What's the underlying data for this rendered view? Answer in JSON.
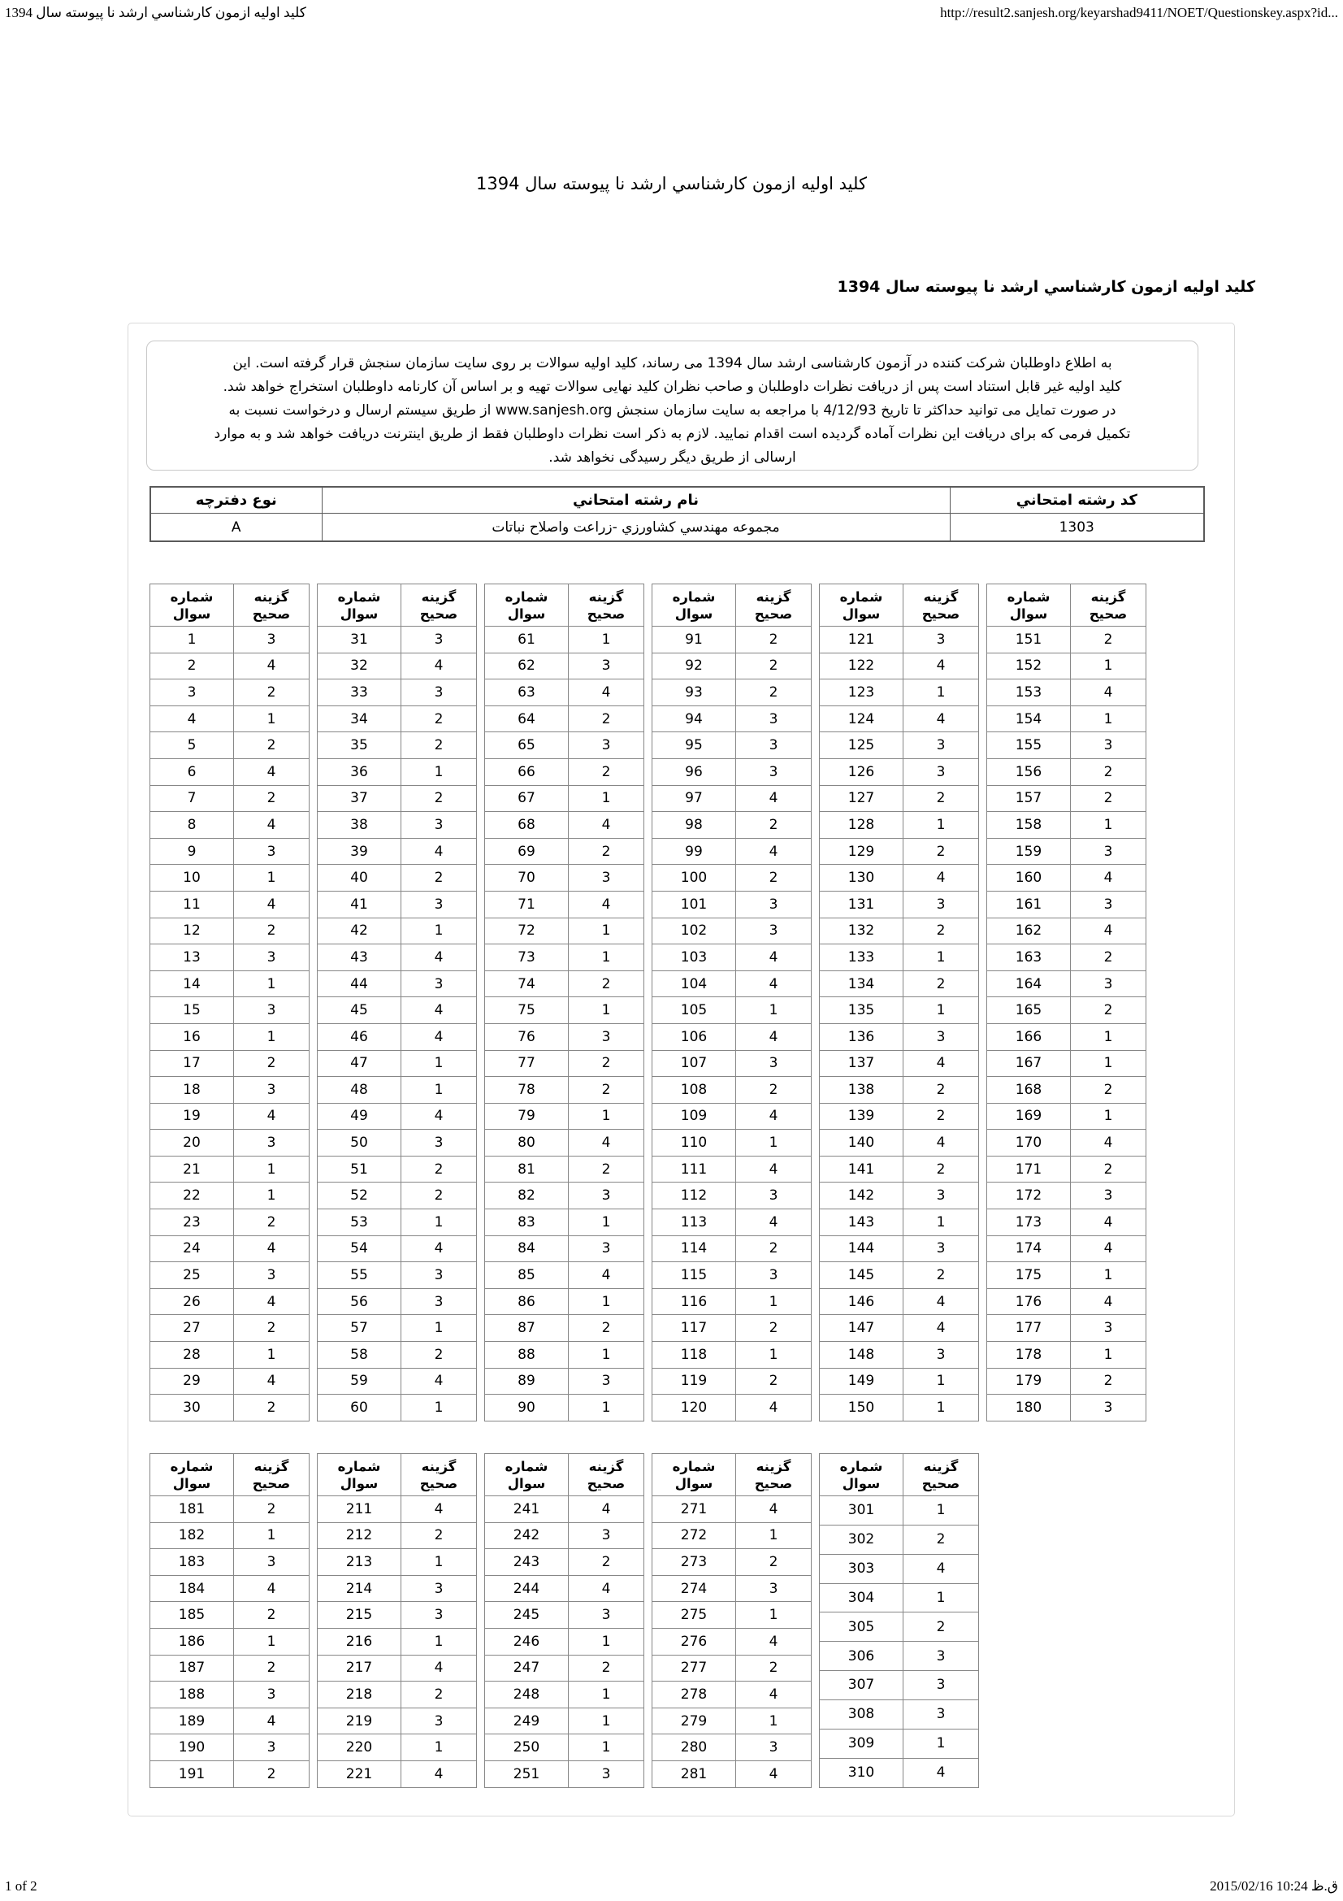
{
  "browser_header": {
    "title": "کلید اولیه ازمون کارشناسي ارشد نا پیوسته سال 1394",
    "url": "http://result2.sanjesh.org/keyarshad9411/NOET/Questionskey.aspx?id..."
  },
  "page": {
    "title": "کلید اولیه ازمون کارشناسي ارشد نا پیوسته سال 1394",
    "subtitle": "کلید اولیه ازمون کارشناسي ارشد نا پیوسته سال 1394"
  },
  "notice": {
    "lines": [
      "به اطلاع داوطلبان شرکت کننده در آزمون کارشناسی ارشد سال 1394 می رساند، کلید اولیه سوالات بر روی سایت سازمان سنجش قرار گرفته است. این",
      "کلید اولیه غیر قابل استناد است پس از دریافت نظرات داوطلبان و صاحب نظران کلید نهایی سوالات تهیه و بر اساس آن کارنامه داوطلبان استخراج خواهد شد.",
      "در صورت تمایل می توانید حداکثر تا تاریخ 4/12/93 با مراجعه به سایت سازمان سنجش www.sanjesh.org از طریق  سیستم ارسال و درخواست نسبت به",
      "تکمیل فرمی که برای دریافت این نظرات آماده گردیده است اقدام نمایید. لازم به ذکر است نظرات داوطلبان فقط از طریق اینترنت دریافت خواهد شد و به موارد",
      "ارسالی از طریق دیگر رسیدگی نخواهد شد."
    ]
  },
  "exam_info": {
    "headers": {
      "code": "کد رشته امتحاني",
      "name": "نام رشته امتحاني",
      "booklet": "نوع دفترچه"
    },
    "row": {
      "code": "1303",
      "name": "مجموعه مهندسي کشاورزي -زراعت واصلاح نباتات",
      "booklet": "A"
    }
  },
  "answer_key": {
    "question_header": "شماره سوال",
    "answer_header": "گزینه صحیح",
    "tables_top": [
      {
        "rows": [
          [
            1,
            3
          ],
          [
            2,
            4
          ],
          [
            3,
            2
          ],
          [
            4,
            1
          ],
          [
            5,
            2
          ],
          [
            6,
            4
          ],
          [
            7,
            2
          ],
          [
            8,
            4
          ],
          [
            9,
            3
          ],
          [
            10,
            1
          ],
          [
            11,
            4
          ],
          [
            12,
            2
          ],
          [
            13,
            3
          ],
          [
            14,
            1
          ],
          [
            15,
            3
          ],
          [
            16,
            1
          ],
          [
            17,
            2
          ],
          [
            18,
            3
          ],
          [
            19,
            4
          ],
          [
            20,
            3
          ],
          [
            21,
            1
          ],
          [
            22,
            1
          ],
          [
            23,
            2
          ],
          [
            24,
            4
          ],
          [
            25,
            3
          ],
          [
            26,
            4
          ],
          [
            27,
            2
          ],
          [
            28,
            1
          ],
          [
            29,
            4
          ],
          [
            30,
            2
          ]
        ]
      },
      {
        "rows": [
          [
            31,
            3
          ],
          [
            32,
            4
          ],
          [
            33,
            3
          ],
          [
            34,
            2
          ],
          [
            35,
            2
          ],
          [
            36,
            1
          ],
          [
            37,
            2
          ],
          [
            38,
            3
          ],
          [
            39,
            4
          ],
          [
            40,
            2
          ],
          [
            41,
            3
          ],
          [
            42,
            1
          ],
          [
            43,
            4
          ],
          [
            44,
            3
          ],
          [
            45,
            4
          ],
          [
            46,
            4
          ],
          [
            47,
            1
          ],
          [
            48,
            1
          ],
          [
            49,
            4
          ],
          [
            50,
            3
          ],
          [
            51,
            2
          ],
          [
            52,
            2
          ],
          [
            53,
            1
          ],
          [
            54,
            4
          ],
          [
            55,
            3
          ],
          [
            56,
            3
          ],
          [
            57,
            1
          ],
          [
            58,
            2
          ],
          [
            59,
            4
          ],
          [
            60,
            1
          ]
        ]
      },
      {
        "rows": [
          [
            61,
            1
          ],
          [
            62,
            3
          ],
          [
            63,
            4
          ],
          [
            64,
            2
          ],
          [
            65,
            3
          ],
          [
            66,
            2
          ],
          [
            67,
            1
          ],
          [
            68,
            4
          ],
          [
            69,
            2
          ],
          [
            70,
            3
          ],
          [
            71,
            4
          ],
          [
            72,
            1
          ],
          [
            73,
            1
          ],
          [
            74,
            2
          ],
          [
            75,
            1
          ],
          [
            76,
            3
          ],
          [
            77,
            2
          ],
          [
            78,
            2
          ],
          [
            79,
            1
          ],
          [
            80,
            4
          ],
          [
            81,
            2
          ],
          [
            82,
            3
          ],
          [
            83,
            1
          ],
          [
            84,
            3
          ],
          [
            85,
            4
          ],
          [
            86,
            1
          ],
          [
            87,
            2
          ],
          [
            88,
            1
          ],
          [
            89,
            3
          ],
          [
            90,
            1
          ]
        ]
      },
      {
        "rows": [
          [
            91,
            2
          ],
          [
            92,
            2
          ],
          [
            93,
            2
          ],
          [
            94,
            3
          ],
          [
            95,
            3
          ],
          [
            96,
            3
          ],
          [
            97,
            4
          ],
          [
            98,
            2
          ],
          [
            99,
            4
          ],
          [
            100,
            2
          ],
          [
            101,
            3
          ],
          [
            102,
            3
          ],
          [
            103,
            4
          ],
          [
            104,
            4
          ],
          [
            105,
            1
          ],
          [
            106,
            4
          ],
          [
            107,
            3
          ],
          [
            108,
            2
          ],
          [
            109,
            4
          ],
          [
            110,
            1
          ],
          [
            111,
            4
          ],
          [
            112,
            3
          ],
          [
            113,
            4
          ],
          [
            114,
            2
          ],
          [
            115,
            3
          ],
          [
            116,
            1
          ],
          [
            117,
            2
          ],
          [
            118,
            1
          ],
          [
            119,
            2
          ],
          [
            120,
            4
          ]
        ]
      },
      {
        "rows": [
          [
            121,
            3
          ],
          [
            122,
            4
          ],
          [
            123,
            1
          ],
          [
            124,
            4
          ],
          [
            125,
            3
          ],
          [
            126,
            3
          ],
          [
            127,
            2
          ],
          [
            128,
            1
          ],
          [
            129,
            2
          ],
          [
            130,
            4
          ],
          [
            131,
            3
          ],
          [
            132,
            2
          ],
          [
            133,
            1
          ],
          [
            134,
            2
          ],
          [
            135,
            1
          ],
          [
            136,
            3
          ],
          [
            137,
            4
          ],
          [
            138,
            2
          ],
          [
            139,
            2
          ],
          [
            140,
            4
          ],
          [
            141,
            2
          ],
          [
            142,
            3
          ],
          [
            143,
            1
          ],
          [
            144,
            3
          ],
          [
            145,
            2
          ],
          [
            146,
            4
          ],
          [
            147,
            4
          ],
          [
            148,
            3
          ],
          [
            149,
            1
          ],
          [
            150,
            1
          ]
        ]
      },
      {
        "rows": [
          [
            151,
            2
          ],
          [
            152,
            1
          ],
          [
            153,
            4
          ],
          [
            154,
            1
          ],
          [
            155,
            3
          ],
          [
            156,
            2
          ],
          [
            157,
            2
          ],
          [
            158,
            1
          ],
          [
            159,
            3
          ],
          [
            160,
            4
          ],
          [
            161,
            3
          ],
          [
            162,
            4
          ],
          [
            163,
            2
          ],
          [
            164,
            3
          ],
          [
            165,
            2
          ],
          [
            166,
            1
          ],
          [
            167,
            1
          ],
          [
            168,
            2
          ],
          [
            169,
            1
          ],
          [
            170,
            4
          ],
          [
            171,
            2
          ],
          [
            172,
            3
          ],
          [
            173,
            4
          ],
          [
            174,
            4
          ],
          [
            175,
            1
          ],
          [
            176,
            4
          ],
          [
            177,
            3
          ],
          [
            178,
            1
          ],
          [
            179,
            2
          ],
          [
            180,
            3
          ]
        ]
      }
    ],
    "tables_bottom": [
      {
        "rows": [
          [
            181,
            2
          ],
          [
            182,
            1
          ],
          [
            183,
            3
          ],
          [
            184,
            4
          ],
          [
            185,
            2
          ],
          [
            186,
            1
          ],
          [
            187,
            2
          ],
          [
            188,
            3
          ],
          [
            189,
            4
          ],
          [
            190,
            3
          ],
          [
            191,
            2
          ]
        ]
      },
      {
        "rows": [
          [
            211,
            4
          ],
          [
            212,
            2
          ],
          [
            213,
            1
          ],
          [
            214,
            3
          ],
          [
            215,
            3
          ],
          [
            216,
            1
          ],
          [
            217,
            4
          ],
          [
            218,
            2
          ],
          [
            219,
            3
          ],
          [
            220,
            1
          ],
          [
            221,
            4
          ]
        ]
      },
      {
        "rows": [
          [
            241,
            4
          ],
          [
            242,
            3
          ],
          [
            243,
            2
          ],
          [
            244,
            4
          ],
          [
            245,
            3
          ],
          [
            246,
            1
          ],
          [
            247,
            2
          ],
          [
            248,
            1
          ],
          [
            249,
            1
          ],
          [
            250,
            1
          ],
          [
            251,
            3
          ]
        ]
      },
      {
        "rows": [
          [
            271,
            4
          ],
          [
            272,
            1
          ],
          [
            273,
            2
          ],
          [
            274,
            3
          ],
          [
            275,
            1
          ],
          [
            276,
            4
          ],
          [
            277,
            2
          ],
          [
            278,
            4
          ],
          [
            279,
            1
          ],
          [
            280,
            3
          ],
          [
            281,
            4
          ]
        ]
      },
      {
        "rows": [
          [
            301,
            1
          ],
          [
            302,
            2
          ],
          [
            303,
            4
          ],
          [
            304,
            1
          ],
          [
            305,
            2
          ],
          [
            306,
            3
          ],
          [
            307,
            3
          ],
          [
            308,
            3
          ],
          [
            309,
            1
          ],
          [
            310,
            4
          ]
        ]
      }
    ]
  },
  "footer": {
    "page_info": "1 of 2",
    "datetime": "2015/02/16 10:24 ق.ظ"
  }
}
